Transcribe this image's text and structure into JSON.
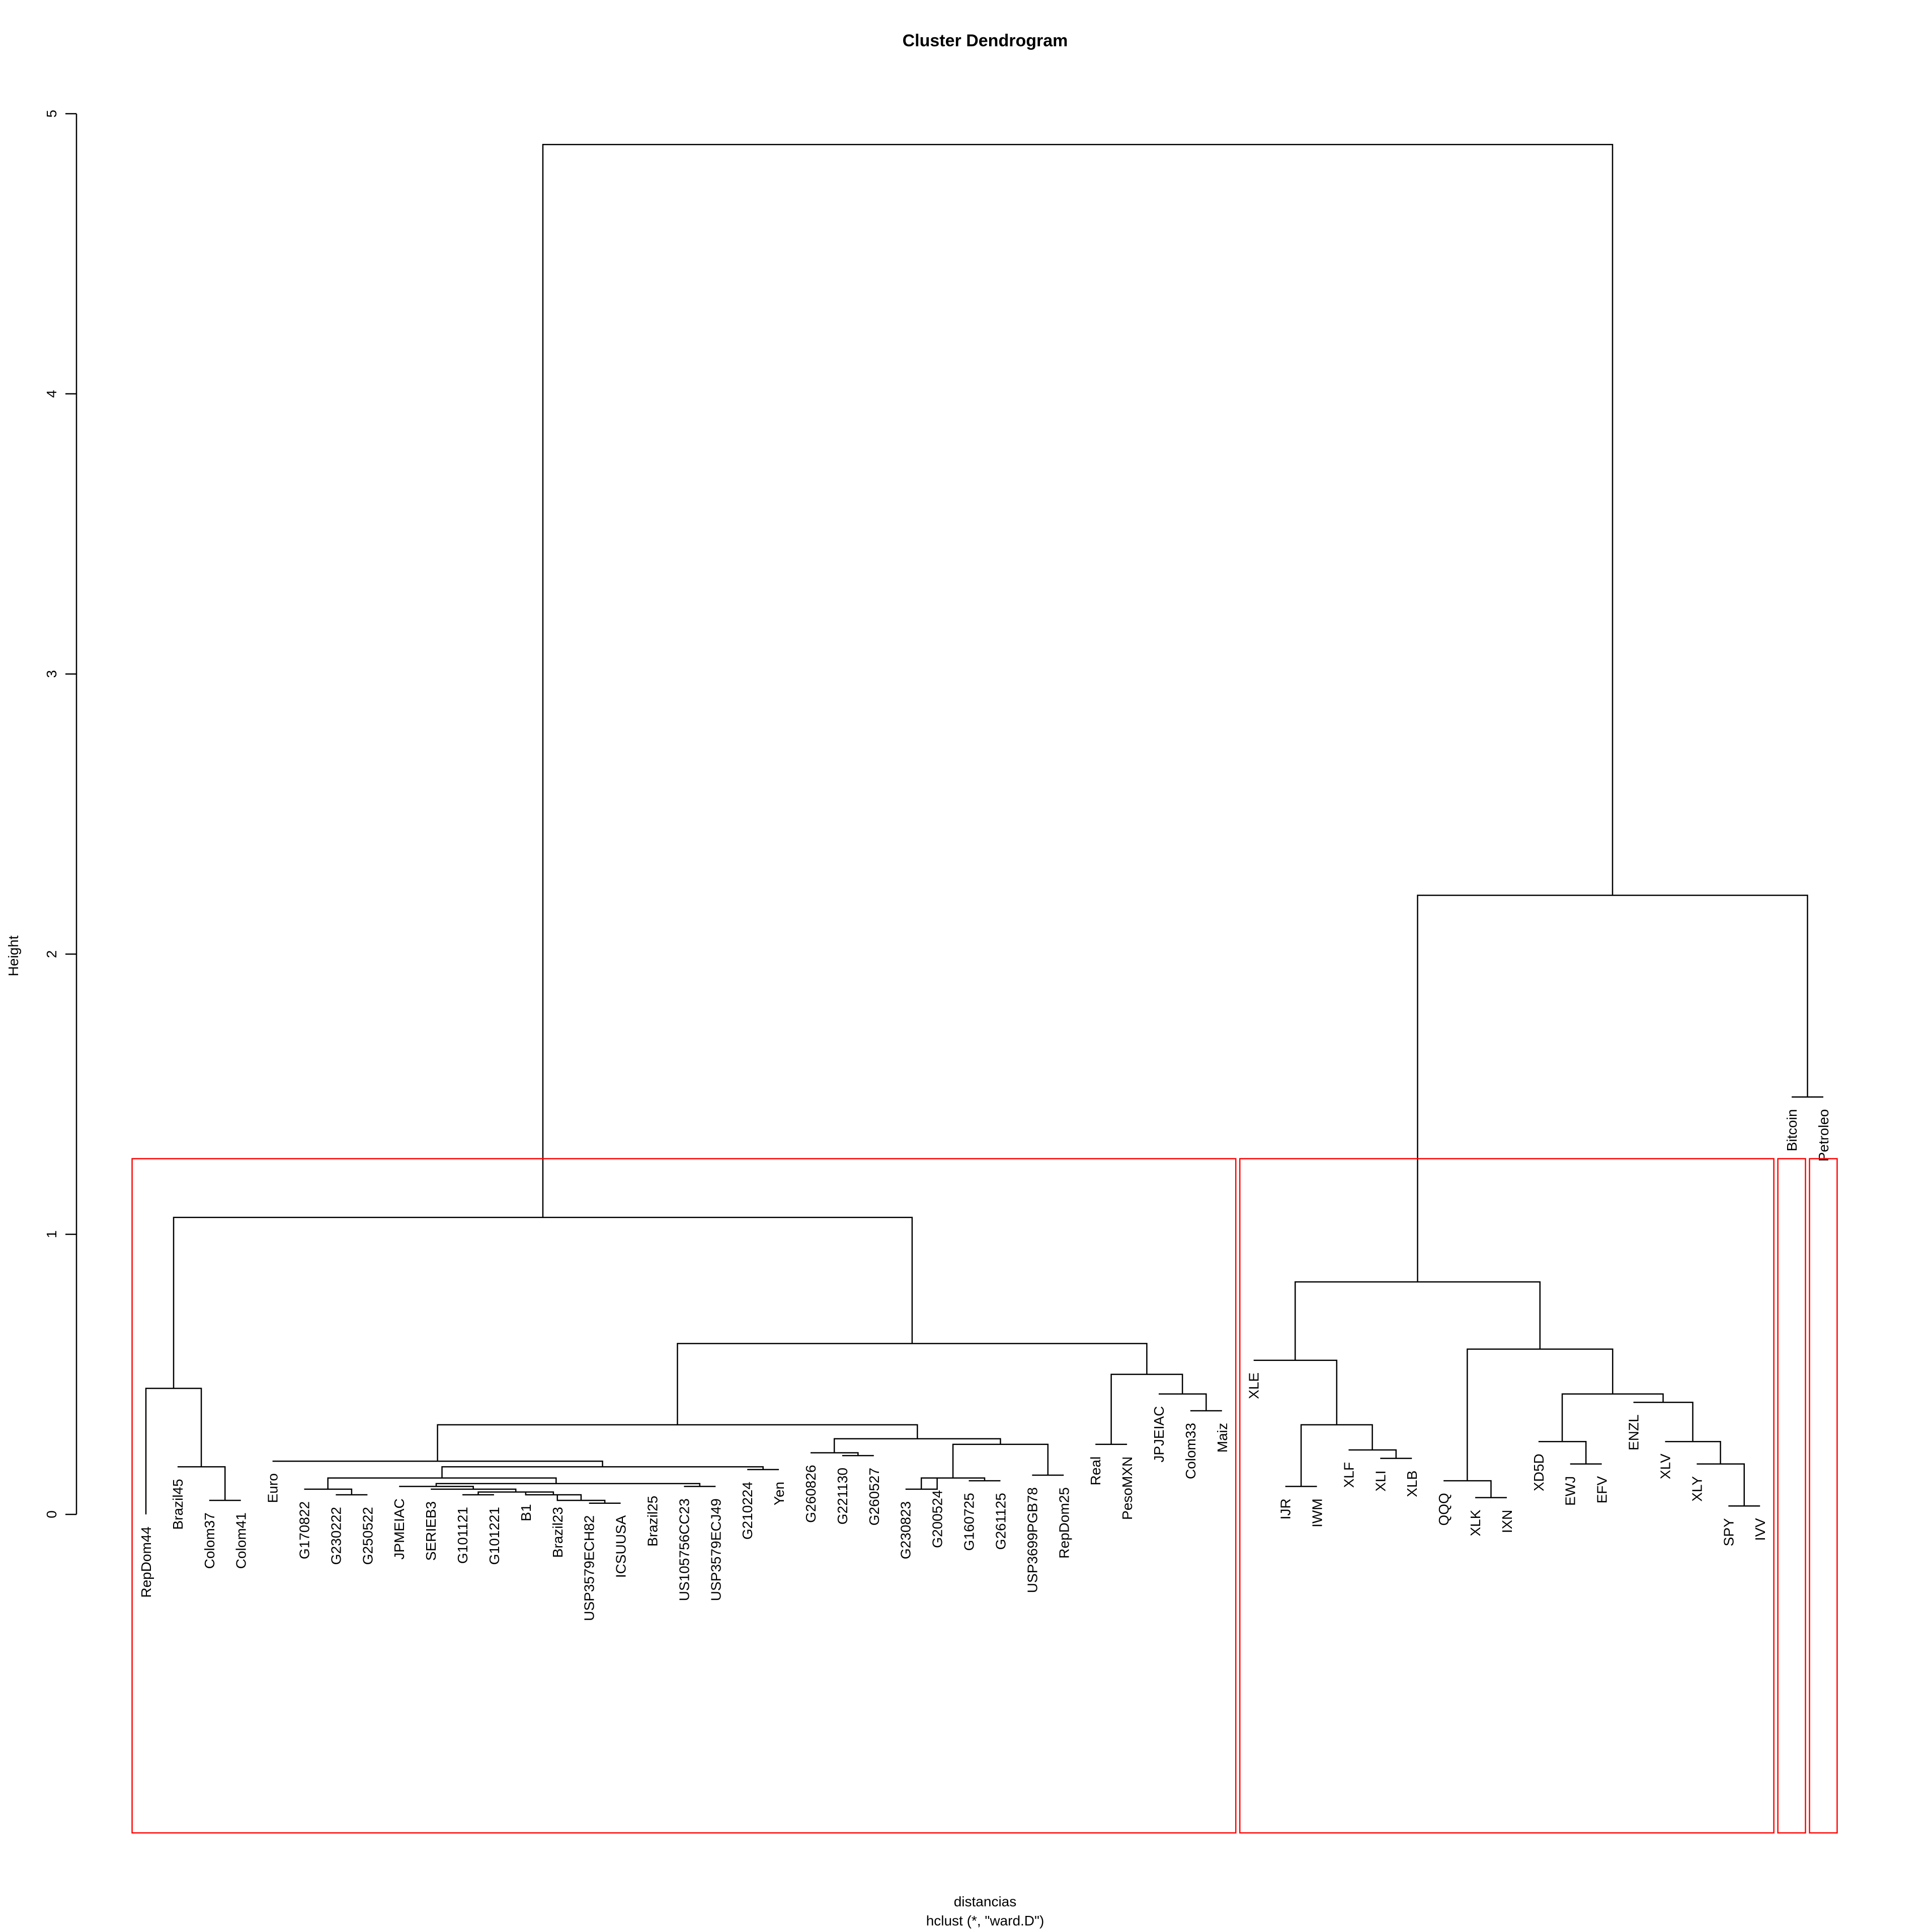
{
  "chart_data": {
    "type": "dendrogram",
    "title": "Cluster Dendrogram",
    "xlabel": "distancias",
    "sublabel": "hclust (*, \"ward.D\")",
    "ylabel": "Height",
    "ylim": [
      0,
      5
    ],
    "yticks": [
      "0",
      "1",
      "2",
      "3",
      "4",
      "5"
    ],
    "leaves": [
      "RepDom44",
      "Brazil45",
      "Colom37",
      "Colom41",
      "Euro",
      "G170822",
      "G230222",
      "G250522",
      "JPMEIAC",
      "SERIEB3",
      "G101121",
      "G101221",
      "B1",
      "Brazil23",
      "USP3579ECH82",
      "ICSUUSA",
      "Brazil25",
      "US105756CC23",
      "USP3579ECJ49",
      "G210224",
      "Yen",
      "G260826",
      "G221130",
      "G260527",
      "G230823",
      "G200524",
      "G160725",
      "G261125",
      "USP3699PGB78",
      "RepDom25",
      "Real",
      "PesoMXN",
      "JPJEIAC",
      "Colom33",
      "Maiz",
      "XLE",
      "IJR",
      "IWM",
      "XLF",
      "XLI",
      "XLB",
      "QQQ",
      "XLK",
      "IXN",
      "XD5D",
      "EWJ",
      "EFV",
      "ENZL",
      "XLV",
      "XLY",
      "SPY",
      "IVV",
      "Bitcoin",
      "Petroleo"
    ],
    "leaf_heights": [
      0,
      0.17,
      0.05,
      0.05,
      0.19,
      0.09,
      0.07,
      0.07,
      0.1,
      0.09,
      0.07,
      0.07,
      0.08,
      0.07,
      0.04,
      0.04,
      0.11,
      0.1,
      0.1,
      0.16,
      0.16,
      0.22,
      0.21,
      0.21,
      0.09,
      0.13,
      0.12,
      0.12,
      0.14,
      0.14,
      0.25,
      0.25,
      0.43,
      0.37,
      0.37,
      0.55,
      0.1,
      0.1,
      0.23,
      0.2,
      0.2,
      0.12,
      0.06,
      0.06,
      0.26,
      0.18,
      0.18,
      0.4,
      0.26,
      0.18,
      0.03,
      0.03,
      1.49,
      1.49
    ],
    "merges": [
      {
        "left": -3,
        "right": -4,
        "height": 0.05
      },
      {
        "left": -2,
        "right": 1,
        "height": 0.17
      },
      {
        "left": -1,
        "right": 2,
        "height": 0.45
      },
      {
        "left": -7,
        "right": -8,
        "height": 0.07
      },
      {
        "left": -6,
        "right": 4,
        "height": 0.09
      },
      {
        "left": -15,
        "right": -16,
        "height": 0.04
      },
      {
        "left": -14,
        "right": 6,
        "height": 0.05
      },
      {
        "left": -13,
        "right": 7,
        "height": 0.07
      },
      {
        "left": -11,
        "right": -12,
        "height": 0.07
      },
      {
        "left": 9,
        "right": 8,
        "height": 0.08
      },
      {
        "left": -10,
        "right": 10,
        "height": 0.09
      },
      {
        "left": -9,
        "right": 11,
        "height": 0.1
      },
      {
        "left": -18,
        "right": -19,
        "height": 0.1
      },
      {
        "left": -17,
        "right": 13,
        "height": 0.11
      },
      {
        "left": 12,
        "right": 14,
        "height": 0.11
      },
      {
        "left": 5,
        "right": 15,
        "height": 0.13
      },
      {
        "left": -20,
        "right": -21,
        "height": 0.16
      },
      {
        "left": 16,
        "right": 17,
        "height": 0.17
      },
      {
        "left": -5,
        "right": 18,
        "height": 0.19
      },
      {
        "left": -23,
        "right": -24,
        "height": 0.21
      },
      {
        "left": -22,
        "right": 20,
        "height": 0.22
      },
      {
        "left": -27,
        "right": -28,
        "height": 0.12
      },
      {
        "left": -25,
        "right": -26,
        "height": 0.09
      },
      {
        "left": 23,
        "right": 22,
        "height": 0.13
      },
      {
        "left": -29,
        "right": -30,
        "height": 0.14
      },
      {
        "left": 24,
        "right": 25,
        "height": 0.25
      },
      {
        "left": 21,
        "right": 26,
        "height": 0.27
      },
      {
        "left": 19,
        "right": 27,
        "height": 0.32
      },
      {
        "left": -31,
        "right": -32,
        "height": 0.25
      },
      {
        "left": -34,
        "right": -35,
        "height": 0.37
      },
      {
        "left": -33,
        "right": 30,
        "height": 0.43
      },
      {
        "left": 29,
        "right": 31,
        "height": 0.5
      },
      {
        "left": 28,
        "right": 32,
        "height": 0.61
      },
      {
        "left": 3,
        "right": 33,
        "height": 1.06
      },
      {
        "left": -37,
        "right": -38,
        "height": 0.1
      },
      {
        "left": -40,
        "right": -41,
        "height": 0.2
      },
      {
        "left": -39,
        "right": 36,
        "height": 0.23
      },
      {
        "left": 35,
        "right": 37,
        "height": 0.32
      },
      {
        "left": -36,
        "right": 38,
        "height": 0.55
      },
      {
        "left": -43,
        "right": -44,
        "height": 0.06
      },
      {
        "left": -42,
        "right": 40,
        "height": 0.12
      },
      {
        "left": -46,
        "right": -47,
        "height": 0.18
      },
      {
        "left": -45,
        "right": 42,
        "height": 0.26
      },
      {
        "left": -51,
        "right": -52,
        "height": 0.03
      },
      {
        "left": -50,
        "right": 44,
        "height": 0.18
      },
      {
        "left": -49,
        "right": 45,
        "height": 0.26
      },
      {
        "left": -48,
        "right": 46,
        "height": 0.4
      },
      {
        "left": 43,
        "right": 47,
        "height": 0.43
      },
      {
        "left": 41,
        "right": 48,
        "height": 0.59
      },
      {
        "left": 39,
        "right": 49,
        "height": 0.83
      },
      {
        "left": -53,
        "right": -54,
        "height": 1.49
      },
      {
        "left": 50,
        "right": 51,
        "height": 2.21
      },
      {
        "left": 34,
        "right": 52,
        "height": 4.89
      }
    ],
    "cluster_boxes": [
      {
        "from": 1,
        "to": 35
      },
      {
        "from": 36,
        "to": 52
      },
      {
        "from": 53,
        "to": 53
      },
      {
        "from": 54,
        "to": 54
      }
    ],
    "box_color": "#ff0000",
    "line_color": "#000000",
    "grid": false,
    "legend": "none"
  }
}
